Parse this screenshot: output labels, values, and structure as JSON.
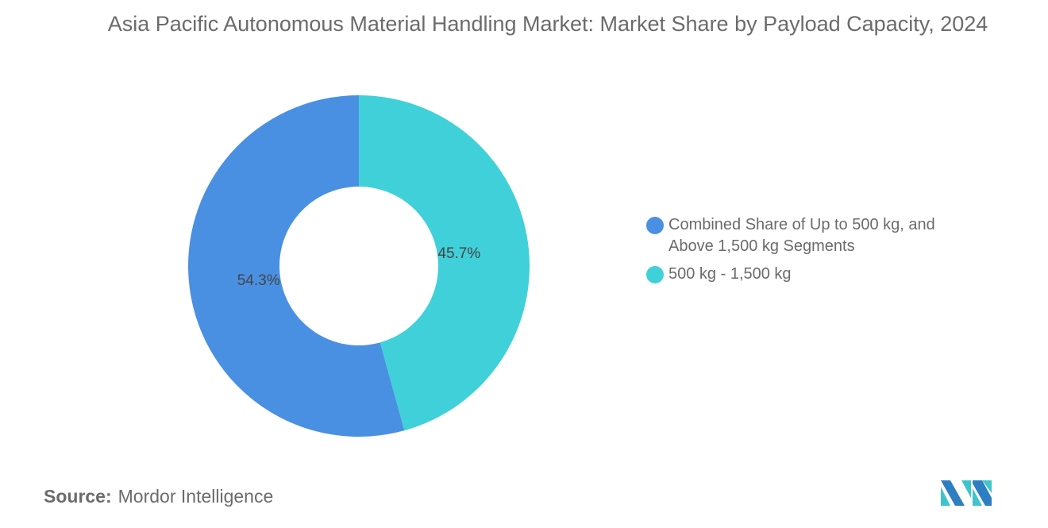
{
  "chart_data": {
    "type": "pie",
    "title": "Asia Pacific Autonomous Material Handling Market: Market Share by Payload Capacity, 2024",
    "donut": true,
    "legend_position": "right",
    "slices": [
      {
        "name": "500 kg - 1,500 kg",
        "value": 45.7,
        "label": "45.7%",
        "color": "#40D0DA"
      },
      {
        "name": "Combined Share of Up to 500 kg, and Above 1,500 kg Segments",
        "value": 54.3,
        "label": "54.3%",
        "color": "#4A90E2"
      }
    ],
    "legend": [
      {
        "label": "Combined Share of Up to 500 kg, and Above 1,500 kg Segments",
        "color": "#4A90E2"
      },
      {
        "label": "500 kg - 1,500 kg",
        "color": "#40D0DA"
      }
    ]
  },
  "source": {
    "label": "Source:",
    "value": "Mordor Intelligence"
  },
  "logo": {
    "name": "mordor-intelligence-logo",
    "colors": [
      "#2E7FC2",
      "#40C4CC"
    ]
  }
}
